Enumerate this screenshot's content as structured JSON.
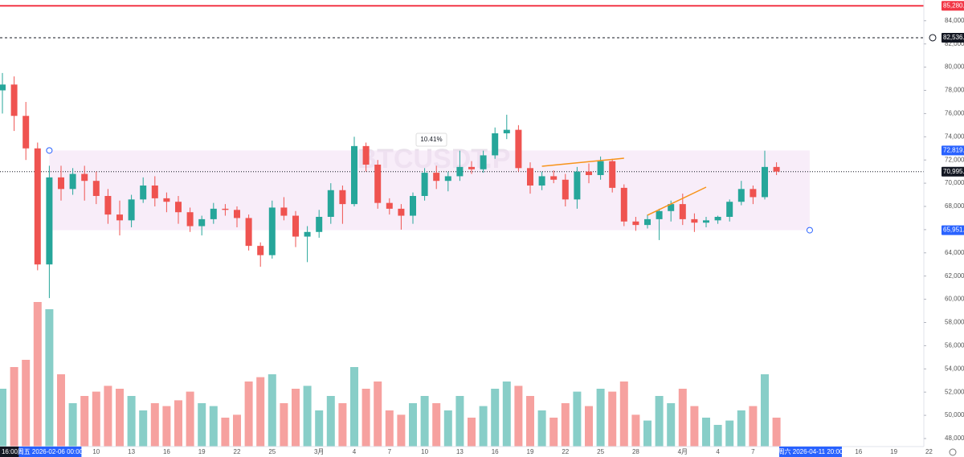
{
  "chart_data": {
    "type": "candlestick",
    "watermark": "BTCUSDT.P",
    "annotation": "10.41%",
    "up_color": "#26a69a",
    "down_color": "#ef5350",
    "ylim": [
      47308,
      85785
    ],
    "yticks": [
      {
        "value": 48000,
        "label": "48,000.0"
      },
      {
        "value": 50000,
        "label": "50,000.0"
      },
      {
        "value": 52000,
        "label": "52,000.0"
      },
      {
        "value": 54000,
        "label": "54,000.0"
      },
      {
        "value": 56000,
        "label": "56,000.0"
      },
      {
        "value": 58000,
        "label": "58,000.0"
      },
      {
        "value": 60000,
        "label": "60,000.0"
      },
      {
        "value": 62000,
        "label": "62,000.0"
      },
      {
        "value": 64000,
        "label": "64,000.0"
      },
      {
        "value": 66000,
        "label": "66,000.0"
      },
      {
        "value": 68000,
        "label": "68,000.0"
      },
      {
        "value": 70000,
        "label": "70,000.0"
      },
      {
        "value": 72000,
        "label": "72,000.0"
      },
      {
        "value": 74000,
        "label": "74,000.0"
      },
      {
        "value": 76000,
        "label": "76,000.0"
      },
      {
        "value": 78000,
        "label": "78,000.0"
      },
      {
        "value": 80000,
        "label": "80,000.0"
      },
      {
        "value": 82000,
        "label": "82,000.0"
      },
      {
        "value": 84000,
        "label": "84,000.0"
      }
    ],
    "xticks": [
      {
        "value": "2026-02-10",
        "label": "10"
      },
      {
        "value": "2026-02-13",
        "label": "13"
      },
      {
        "value": "2026-02-16",
        "label": "16"
      },
      {
        "value": "2026-02-19",
        "label": "19"
      },
      {
        "value": "2026-02-22",
        "label": "22"
      },
      {
        "value": "2026-02-25",
        "label": "25"
      },
      {
        "value": "2026-03-01",
        "label": "3月"
      },
      {
        "value": "2026-03-04",
        "label": "4"
      },
      {
        "value": "2026-03-07",
        "label": "7"
      },
      {
        "value": "2026-03-10",
        "label": "10"
      },
      {
        "value": "2026-03-13",
        "label": "13"
      },
      {
        "value": "2026-03-16",
        "label": "16"
      },
      {
        "value": "2026-03-19",
        "label": "19"
      },
      {
        "value": "2026-03-22",
        "label": "22"
      },
      {
        "value": "2026-03-25",
        "label": "25"
      },
      {
        "value": "2026-03-28",
        "label": "28"
      },
      {
        "value": "2026-04-01",
        "label": "4月"
      },
      {
        "value": "2026-04-04",
        "label": "4"
      },
      {
        "value": "2026-04-07",
        "label": "7"
      },
      {
        "value": "2026-04-16",
        "label": "16"
      },
      {
        "value": "2026-04-19",
        "label": "19"
      },
      {
        "value": "2026-04-22",
        "label": "22"
      }
    ],
    "time_labels": [
      {
        "label": "16:00"
      },
      {
        "value": "2026-02-06",
        "label": "周五 2026-02-06 00:00"
      },
      {
        "value": "2026-04-11T20:00",
        "label": "周六 2026-04-11 20:00"
      }
    ],
    "price_labels": [
      {
        "value": 85280.6,
        "label": "85,280.6",
        "color": "#f23645",
        "line": "solid"
      },
      {
        "value": 82536.6,
        "label": "82,536.6",
        "color": "#131722",
        "line": "dashed"
      },
      {
        "value": 72819.7,
        "label": "72,819.7",
        "color": "#2962ff",
        "line": "none"
      },
      {
        "value": 70995.5,
        "label": "70,995.5",
        "color": "#131722",
        "line": "dotted"
      },
      {
        "value": 65951.5,
        "label": "65,951.5",
        "color": "#2962ff",
        "line": "none"
      }
    ],
    "rectangle": {
      "top": 72819.7,
      "bottom": 65951.5,
      "start": "2026-02-06",
      "end": "2026-04-11T20:00",
      "color": "#f3e1f5"
    },
    "trend_lines": [
      {
        "color": "#f7931a",
        "x": [
          "2026-03-20",
          "2026-03-27"
        ],
        "y": [
          71460,
          72150
        ]
      },
      {
        "color": "#f7931a",
        "x": [
          "2026-03-29",
          "2026-04-03"
        ],
        "y": [
          67240,
          69660
        ]
      }
    ],
    "x": [
      "2026-02-02",
      "2026-02-03",
      "2026-02-04",
      "2026-02-05",
      "2026-02-06",
      "2026-02-07",
      "2026-02-08",
      "2026-02-09",
      "2026-02-10",
      "2026-02-11",
      "2026-02-12",
      "2026-02-13",
      "2026-02-14",
      "2026-02-15",
      "2026-02-16",
      "2026-02-17",
      "2026-02-18",
      "2026-02-19",
      "2026-02-20",
      "2026-02-21",
      "2026-02-22",
      "2026-02-23",
      "2026-02-24",
      "2026-02-25",
      "2026-02-26",
      "2026-02-27",
      "2026-02-28",
      "2026-03-01",
      "2026-03-02",
      "2026-03-03",
      "2026-03-04",
      "2026-03-05",
      "2026-03-06",
      "2026-03-07",
      "2026-03-08",
      "2026-03-09",
      "2026-03-10",
      "2026-03-11",
      "2026-03-12",
      "2026-03-13",
      "2026-03-14",
      "2026-03-15",
      "2026-03-16",
      "2026-03-17",
      "2026-03-18",
      "2026-03-19",
      "2026-03-20",
      "2026-03-21",
      "2026-03-22",
      "2026-03-23",
      "2026-03-24",
      "2026-03-25",
      "2026-03-26",
      "2026-03-27",
      "2026-03-28",
      "2026-03-29",
      "2026-03-30",
      "2026-03-31",
      "2026-04-01",
      "2026-04-02",
      "2026-04-03",
      "2026-04-04",
      "2026-04-05",
      "2026-04-06",
      "2026-04-07",
      "2026-04-08",
      "2026-04-09"
    ],
    "open": [
      78000,
      78500,
      75800,
      73000,
      63000,
      70500,
      69500,
      70800,
      70200,
      68900,
      67300,
      66800,
      68600,
      69800,
      68700,
      68400,
      67500,
      66300,
      66900,
      67800,
      67700,
      67000,
      64600,
      63800,
      67900,
      67200,
      65400,
      65800,
      67100,
      69400,
      68200,
      73200,
      71600,
      68300,
      67800,
      67200,
      68900,
      70900,
      70200,
      70600,
      71400,
      71200,
      72400,
      74300,
      74600,
      71300,
      69800,
      70600,
      70300,
      68600,
      71000,
      70700,
      71900,
      69600,
      66700,
      66400,
      66900,
      67600,
      68200,
      66900,
      66600,
      66800,
      67100,
      68400,
      69500,
      68800,
      71400
    ],
    "high": [
      79500,
      79200,
      77000,
      73500,
      71500,
      71500,
      71300,
      71500,
      71000,
      69500,
      68500,
      69000,
      70500,
      70600,
      69200,
      68900,
      67900,
      67200,
      68300,
      68200,
      68000,
      67300,
      64900,
      68500,
      68800,
      67600,
      66300,
      67700,
      70000,
      69800,
      74000,
      73500,
      72000,
      68700,
      68200,
      69200,
      71300,
      71500,
      71000,
      72800,
      71900,
      72800,
      74800,
      75900,
      75000,
      71800,
      71000,
      71100,
      70800,
      71400,
      71700,
      72300,
      72100,
      69900,
      67100,
      67300,
      67800,
      68500,
      69100,
      67400,
      67100,
      67200,
      68600,
      70200,
      69800,
      72800,
      71800
    ],
    "low": [
      76000,
      74500,
      72000,
      62500,
      60100,
      68500,
      69000,
      68500,
      68200,
      66500,
      65500,
      66200,
      68300,
      68000,
      67500,
      66500,
      65800,
      65500,
      66500,
      67200,
      66200,
      64200,
      62800,
      63500,
      66800,
      64500,
      63200,
      65300,
      66500,
      66500,
      68000,
      71000,
      67800,
      67300,
      66000,
      66500,
      68500,
      69500,
      69300,
      70200,
      70800,
      70900,
      72100,
      73800,
      71000,
      69100,
      69400,
      70000,
      68000,
      67800,
      70000,
      70300,
      69200,
      66300,
      65900,
      66100,
      65100,
      66700,
      66400,
      65800,
      66200,
      66500,
      66700,
      68100,
      68200,
      68600,
      70700
    ],
    "close": [
      78500,
      75800,
      73000,
      63000,
      70500,
      69500,
      70800,
      70200,
      68900,
      67300,
      66800,
      68600,
      69800,
      68700,
      68400,
      67500,
      66300,
      66900,
      67800,
      67700,
      67000,
      64600,
      63800,
      67900,
      67200,
      65400,
      65800,
      67100,
      69400,
      68200,
      73200,
      71600,
      68300,
      67800,
      67200,
      68900,
      70900,
      70200,
      70600,
      71400,
      71200,
      72400,
      74300,
      74600,
      71300,
      69800,
      70600,
      70300,
      68600,
      71000,
      70700,
      71900,
      69600,
      66700,
      66400,
      66900,
      67600,
      68200,
      66900,
      66600,
      66800,
      67100,
      68400,
      69500,
      68800,
      71400,
      71000
    ],
    "volume": [
      40,
      55,
      60,
      100,
      95,
      50,
      30,
      35,
      38,
      42,
      40,
      35,
      25,
      30,
      28,
      32,
      38,
      30,
      28,
      20,
      22,
      45,
      48,
      50,
      30,
      40,
      42,
      25,
      35,
      30,
      55,
      40,
      45,
      25,
      22,
      30,
      35,
      30,
      25,
      35,
      20,
      28,
      40,
      45,
      42,
      35,
      25,
      20,
      30,
      38,
      28,
      40,
      38,
      45,
      22,
      18,
      35,
      30,
      40,
      28,
      20,
      15,
      18,
      25,
      28,
      50,
      20
    ]
  }
}
